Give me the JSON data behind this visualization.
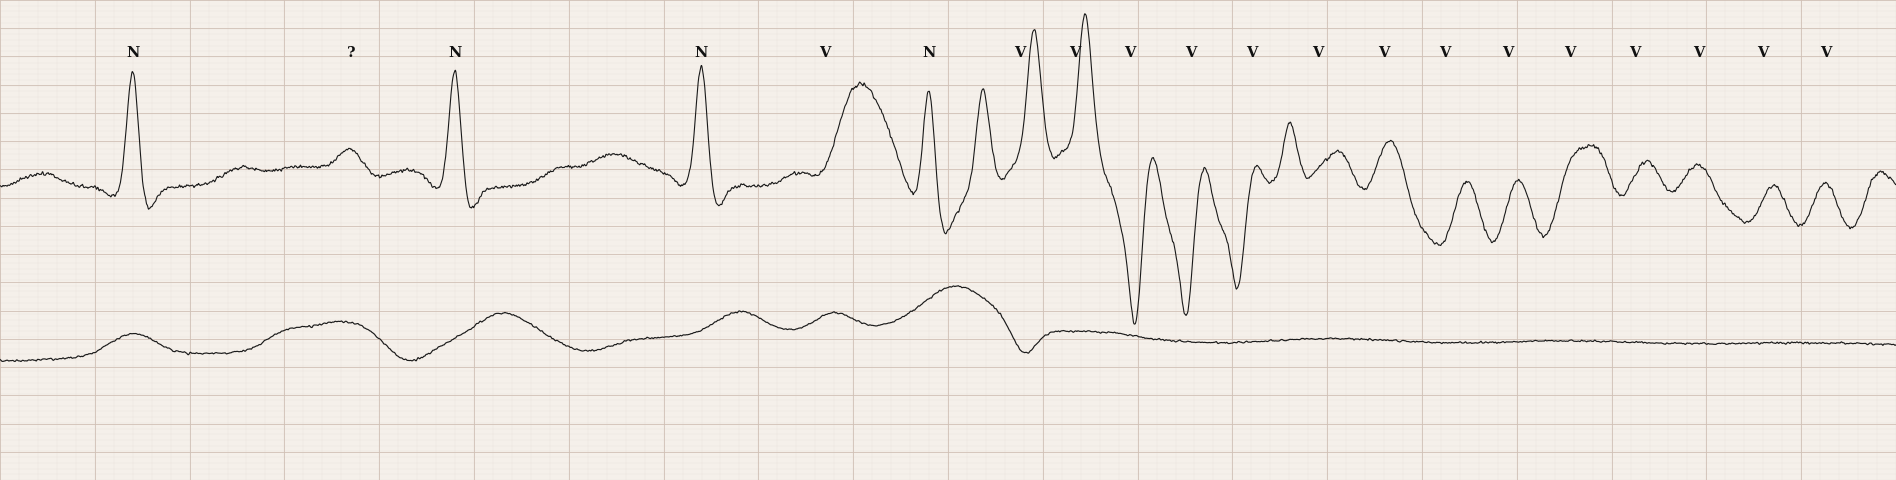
{
  "background_color": "#f5f0ea",
  "grid_major_color": "#d0c0b5",
  "grid_minor_color": "#e5ddd8",
  "ecg_color": "#1a1a1a",
  "label_color": "#111111",
  "fig_width": 18.96,
  "fig_height": 4.8,
  "dpi": 100,
  "trace1_baseline": 0.28,
  "trace2_baseline": -0.38,
  "labels": [
    {
      "text": "N",
      "xf": 0.07,
      "yf": 0.89
    },
    {
      "text": "?",
      "xf": 0.185,
      "yf": 0.89
    },
    {
      "text": "N",
      "xf": 0.24,
      "yf": 0.89
    },
    {
      "text": "N",
      "xf": 0.37,
      "yf": 0.89
    },
    {
      "text": "V",
      "xf": 0.435,
      "yf": 0.89
    },
    {
      "text": "N",
      "xf": 0.49,
      "yf": 0.89
    },
    {
      "text": "V",
      "xf": 0.538,
      "yf": 0.89
    },
    {
      "text": "V",
      "xf": 0.567,
      "yf": 0.89
    },
    {
      "text": "V",
      "xf": 0.596,
      "yf": 0.89
    },
    {
      "text": "V",
      "xf": 0.628,
      "yf": 0.89
    },
    {
      "text": "V",
      "xf": 0.66,
      "yf": 0.89
    },
    {
      "text": "V",
      "xf": 0.695,
      "yf": 0.89
    },
    {
      "text": "V",
      "xf": 0.73,
      "yf": 0.89
    },
    {
      "text": "V",
      "xf": 0.762,
      "yf": 0.89
    },
    {
      "text": "V",
      "xf": 0.795,
      "yf": 0.89
    },
    {
      "text": "V",
      "xf": 0.828,
      "yf": 0.89
    },
    {
      "text": "V",
      "xf": 0.862,
      "yf": 0.89
    },
    {
      "text": "V",
      "xf": 0.896,
      "yf": 0.89
    },
    {
      "text": "V",
      "xf": 0.93,
      "yf": 0.89
    },
    {
      "text": "V",
      "xf": 0.963,
      "yf": 0.89
    }
  ]
}
